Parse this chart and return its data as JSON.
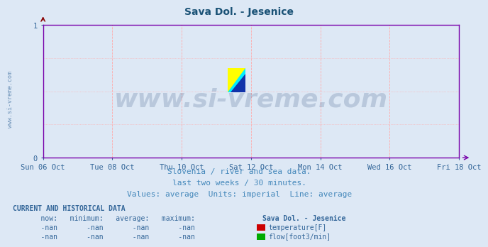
{
  "title": "Sava Dol. - Jesenice",
  "title_color": "#1a5276",
  "title_fontsize": 10,
  "fig_bg_color": "#dde8f5",
  "plot_bg_color": "#dde8f5",
  "grid_color": "#ffaaaa",
  "grid_style": ":",
  "grid_linewidth": 0.8,
  "ylim": [
    0,
    1
  ],
  "yticks": [
    0,
    1
  ],
  "xlabel_color": "#336699",
  "ylabel_color": "#336699",
  "axis_color": "#7700aa",
  "xticklabels": [
    "Sun 06 Oct",
    "Tue 08 Oct",
    "Thu 10 Oct",
    "Sat 12 Oct",
    "Mon 14 Oct",
    "Wed 16 Oct",
    "Fri 18 Oct"
  ],
  "xtick_positions": [
    0,
    2,
    4,
    6,
    8,
    10,
    12
  ],
  "watermark_text": "www.si-vreme.com",
  "watermark_color": "#1a3a6e",
  "watermark_alpha": 0.18,
  "watermark_fontsize": 26,
  "sub_text1": "Slovenia / river and sea data.",
  "sub_text2": "last two weeks / 30 minutes.",
  "sub_text3": "Values: average  Units: imperial  Line: average",
  "sub_color": "#4488bb",
  "sub_fontsize": 8,
  "sidebar_text": "www.si-vreme.com",
  "sidebar_color": "#336699",
  "sidebar_fontsize": 6,
  "table_title": "CURRENT AND HISTORICAL DATA",
  "table_color": "#336699",
  "table_fontsize": 7,
  "color_temp": "#cc0000",
  "color_flow": "#00aa00",
  "table_label1": "temperature[F]",
  "table_label2": "flow[foot3/min]"
}
